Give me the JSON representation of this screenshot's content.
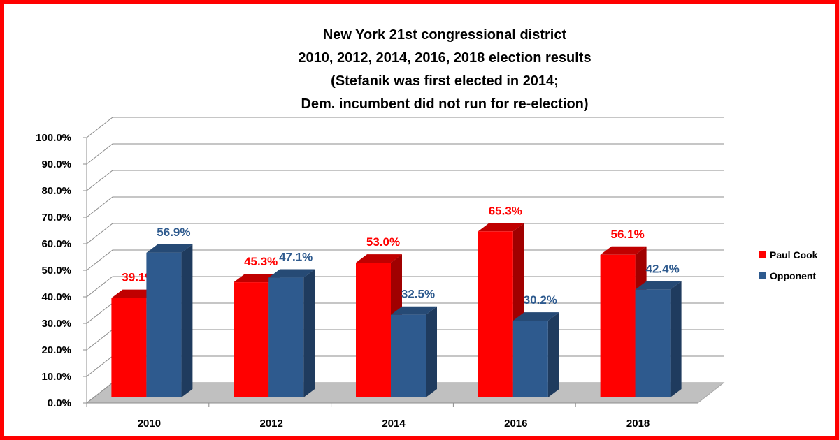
{
  "chart_data": {
    "type": "bar",
    "title_lines": [
      "New York 21st congressional district",
      "2010, 2012, 2014, 2016, 2018 election results",
      "(Stefanik was first elected in 2014;",
      "Dem. incumbent did not run for re-election)"
    ],
    "categories": [
      "2010",
      "2012",
      "2014",
      "2016",
      "2018"
    ],
    "series": [
      {
        "name": "Paul Cook",
        "color": "#ff0000",
        "values": [
          39.1,
          45.3,
          53.0,
          65.3,
          56.1
        ],
        "labels": [
          "39.1%",
          "45.3%",
          "53.0%",
          "65.3%",
          "56.1%"
        ]
      },
      {
        "name": "Opponent",
        "color": "#2e5a8e",
        "values": [
          56.9,
          47.1,
          32.5,
          30.2,
          42.4
        ],
        "labels": [
          "56.9%",
          "47.1%",
          "32.5%",
          "30.2%",
          "42.4%"
        ]
      }
    ],
    "yticks": [
      "0.0%",
      "10.0%",
      "20.0%",
      "30.0%",
      "40.0%",
      "50.0%",
      "60.0%",
      "70.0%",
      "80.0%",
      "90.0%",
      "100.0%"
    ],
    "ylim": [
      0,
      100
    ],
    "grid": true,
    "legend_position": "right",
    "style": "3d-column"
  }
}
